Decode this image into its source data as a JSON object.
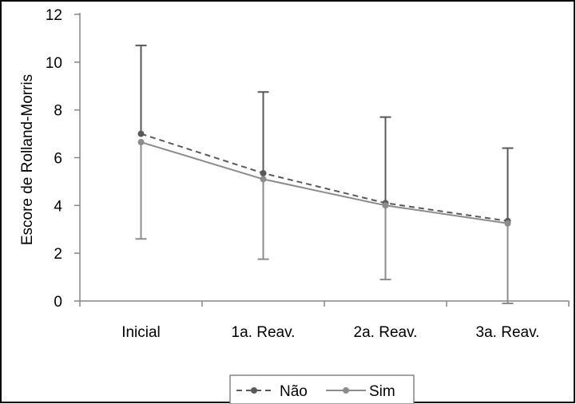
{
  "chart_data": {
    "type": "line",
    "title": "",
    "xlabel": "",
    "ylabel": "Escore de Rolland-Morris",
    "categories": [
      "Inicial",
      "1a. Reav.",
      "2a. Reav.",
      "3a. Reav."
    ],
    "ylim": [
      0,
      12
    ],
    "yticks": [
      0,
      2,
      4,
      6,
      8,
      10,
      12
    ],
    "grid": false,
    "legend_position": "bottom",
    "series": [
      {
        "name": "Não",
        "values": [
          7.0,
          5.35,
          4.1,
          3.35
        ],
        "error_upper": [
          10.7,
          8.75,
          7.7,
          6.4
        ],
        "error_lower": [
          null,
          null,
          null,
          null
        ],
        "color": "#595959",
        "line_style": "dashed"
      },
      {
        "name": "Sim",
        "values": [
          6.65,
          5.1,
          4.0,
          3.25
        ],
        "error_upper": [
          null,
          null,
          null,
          null
        ],
        "error_lower": [
          2.6,
          1.75,
          0.9,
          -0.1
        ],
        "color": "#8c8c8c",
        "line_style": "solid"
      }
    ]
  }
}
